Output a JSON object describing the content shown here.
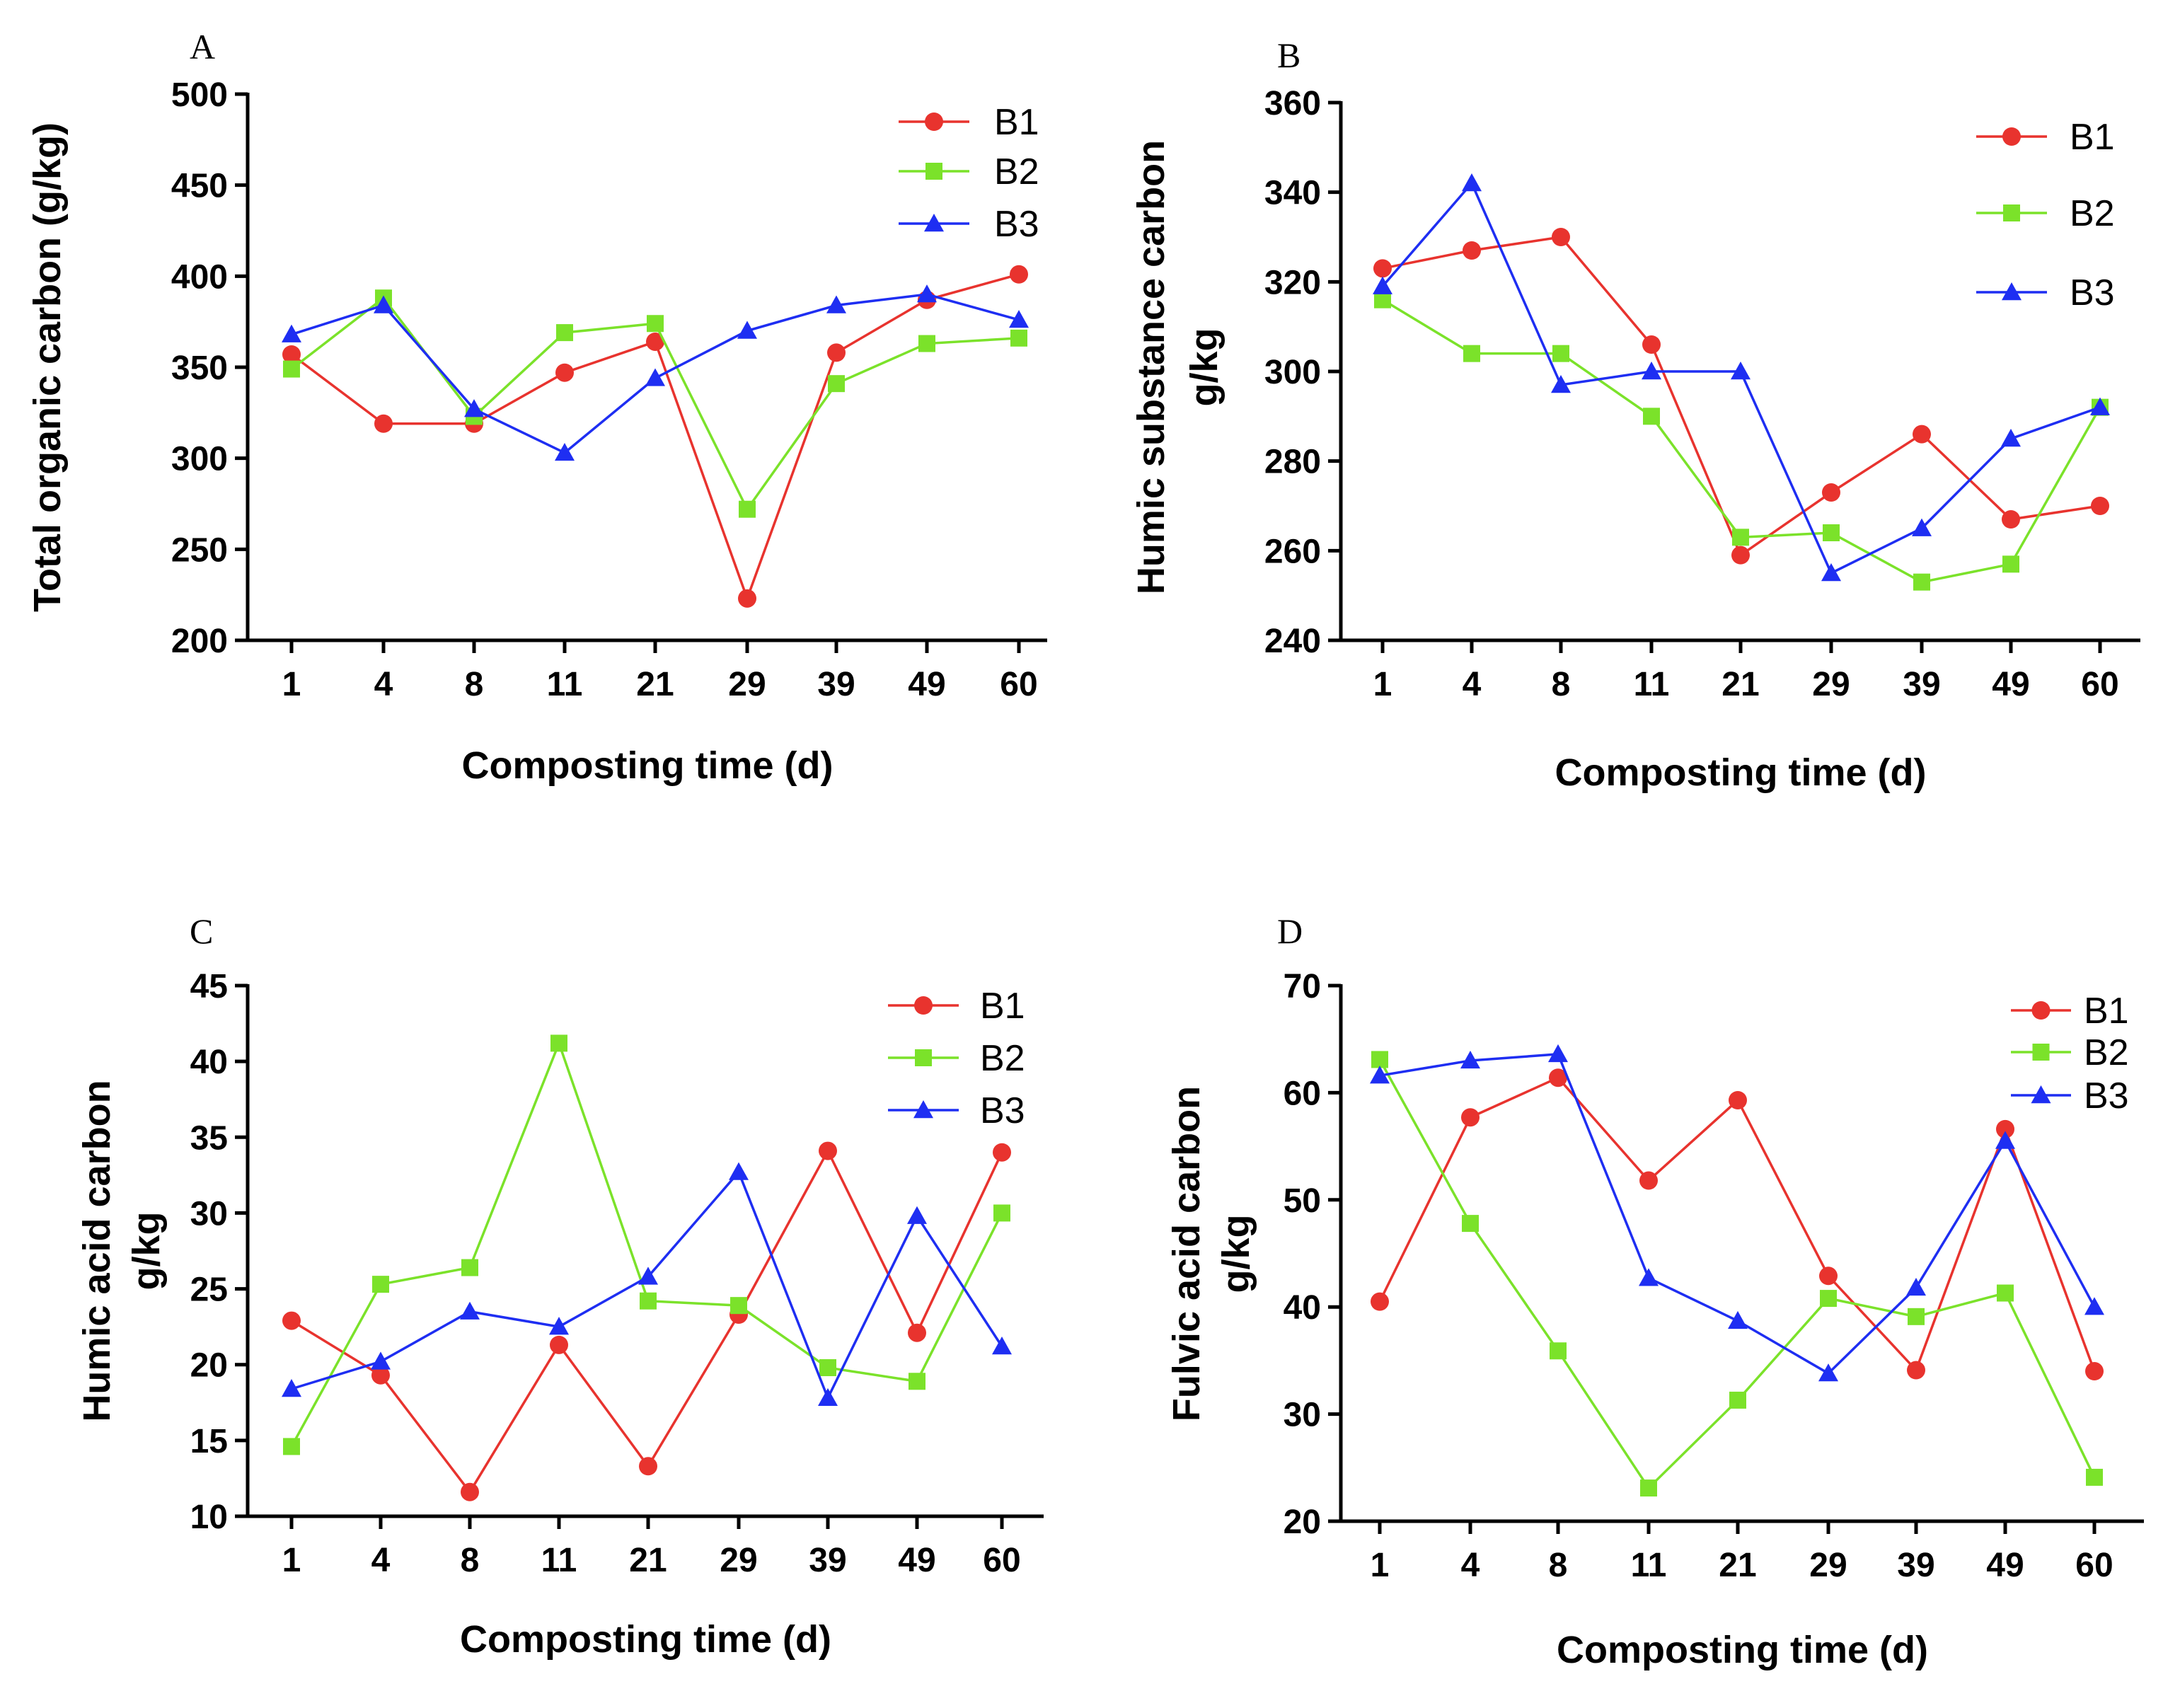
{
  "figure": {
    "series_colors": {
      "B1": "#e8332e",
      "B2": "#7be22a",
      "B3": "#1e2ef2"
    },
    "legend_icons": {
      "B1": "circle-marker",
      "B2": "square-marker",
      "B3": "triangle-marker"
    }
  },
  "chart_data": [
    {
      "panel": "A",
      "type": "line",
      "xlabel": "Composting time (d)",
      "ylabel": "Total organic carbon (g/kg)",
      "ylim": [
        200,
        500
      ],
      "yticks": [
        200,
        250,
        300,
        350,
        400,
        450,
        500
      ],
      "categories": [
        "1",
        "4",
        "8",
        "11",
        "21",
        "29",
        "39",
        "49",
        "60"
      ],
      "series": [
        {
          "name": "B1",
          "values": [
            357,
            319,
            319,
            347,
            364,
            223,
            358,
            387,
            401
          ]
        },
        {
          "name": "B2",
          "values": [
            349,
            388,
            323,
            369,
            374,
            272,
            341,
            363,
            366
          ]
        },
        {
          "name": "B3",
          "values": [
            368,
            384,
            327,
            303,
            344,
            370,
            384,
            390,
            376
          ]
        }
      ]
    },
    {
      "panel": "B",
      "type": "line",
      "xlabel": "Composting time (d)",
      "ylabel": "Humic substance carbon g/kg",
      "ylabel_lines": [
        "Humic substance carbon",
        "g/kg"
      ],
      "ylim": [
        240,
        360
      ],
      "yticks": [
        240,
        260,
        280,
        300,
        320,
        340,
        360
      ],
      "categories": [
        "1",
        "4",
        "8",
        "11",
        "21",
        "29",
        "39",
        "49",
        "60"
      ],
      "series": [
        {
          "name": "B1",
          "values": [
            323,
            327,
            330,
            306,
            259,
            273,
            286,
            267,
            270
          ]
        },
        {
          "name": "B2",
          "values": [
            316,
            304,
            304,
            290,
            263,
            264,
            253,
            257,
            292
          ]
        },
        {
          "name": "B3",
          "values": [
            319,
            342,
            297,
            300,
            300,
            255,
            265,
            285,
            292
          ]
        }
      ]
    },
    {
      "panel": "C",
      "type": "line",
      "xlabel": "Composting time (d)",
      "ylabel": "Humic acid carbon g/kg",
      "ylabel_lines": [
        "Humic acid carbon",
        "g/kg"
      ],
      "ylim": [
        10,
        45
      ],
      "yticks": [
        10,
        15,
        20,
        25,
        30,
        35,
        40,
        45
      ],
      "categories": [
        "1",
        "4",
        "8",
        "11",
        "21",
        "29",
        "39",
        "49",
        "60"
      ],
      "series": [
        {
          "name": "B1",
          "values": [
            22.9,
            19.3,
            11.6,
            21.3,
            13.3,
            23.3,
            34.1,
            22.1,
            34.0
          ]
        },
        {
          "name": "B2",
          "values": [
            14.6,
            25.3,
            26.4,
            41.2,
            24.2,
            23.9,
            19.8,
            18.9,
            30.0
          ]
        },
        {
          "name": "B3",
          "values": [
            18.4,
            20.2,
            23.5,
            22.5,
            25.8,
            32.7,
            17.8,
            29.8,
            21.2
          ]
        }
      ]
    },
    {
      "panel": "D",
      "type": "line",
      "xlabel": "Composting time (d)",
      "ylabel": "Fulvic acid carbon g/kg",
      "ylabel_lines": [
        "Fulvic acid carbon",
        "g/kg"
      ],
      "ylim": [
        20,
        70
      ],
      "yticks": [
        20,
        30,
        40,
        50,
        60,
        70
      ],
      "categories": [
        "1",
        "4",
        "8",
        "11",
        "21",
        "29",
        "39",
        "49",
        "60"
      ],
      "series": [
        {
          "name": "B1",
          "values": [
            40.5,
            57.7,
            61.4,
            51.8,
            59.3,
            42.9,
            34.1,
            56.6,
            34.0
          ]
        },
        {
          "name": "B2",
          "values": [
            63.1,
            47.8,
            35.9,
            23.1,
            31.3,
            40.8,
            39.1,
            41.3,
            24.1
          ]
        },
        {
          "name": "B3",
          "values": [
            61.6,
            63.0,
            63.6,
            42.7,
            38.7,
            33.8,
            41.8,
            55.5,
            40.0
          ]
        }
      ]
    }
  ]
}
